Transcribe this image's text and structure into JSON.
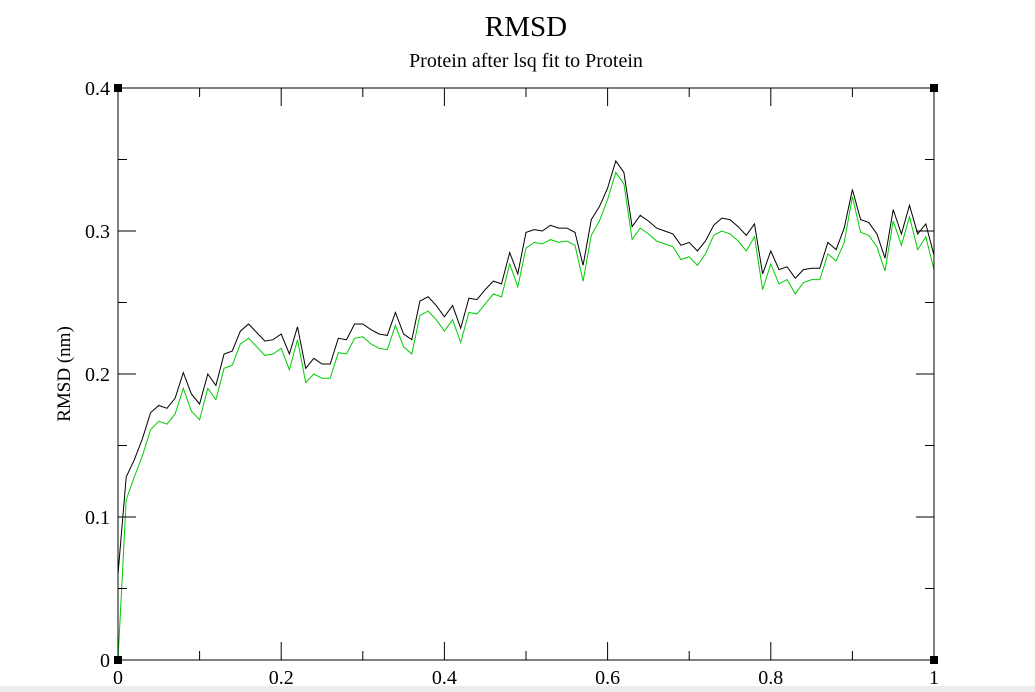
{
  "chart_data": {
    "type": "line",
    "title": "RMSD",
    "subtitle": "Protein after lsq fit to Protein",
    "xlabel": "",
    "ylabel": "RMSD (nm)",
    "xlim": [
      0,
      1
    ],
    "ylim": [
      0,
      0.4
    ],
    "x_ticks": [
      0,
      0.2,
      0.4,
      0.6,
      0.8,
      1
    ],
    "x_tick_labels": [
      "0",
      "0.2",
      "0.4",
      "0.6",
      "0.8",
      "1"
    ],
    "y_ticks": [
      0,
      0.1,
      0.2,
      0.3,
      0.4
    ],
    "y_tick_labels": [
      "0",
      "0.1",
      "0.2",
      "0.3",
      "0.4"
    ],
    "grid": false,
    "legend": "none",
    "series": [
      {
        "color": "#000000",
        "x": [
          0,
          0.01,
          0.02,
          0.03,
          0.04,
          0.05,
          0.06,
          0.07,
          0.08,
          0.09,
          0.1,
          0.11,
          0.12,
          0.13,
          0.14,
          0.15,
          0.16,
          0.17,
          0.18,
          0.19,
          0.2,
          0.21,
          0.22,
          0.23,
          0.24,
          0.25,
          0.26,
          0.27,
          0.28,
          0.29,
          0.3,
          0.31,
          0.32,
          0.33,
          0.34,
          0.35,
          0.36,
          0.37,
          0.38,
          0.39,
          0.4,
          0.41,
          0.42,
          0.43,
          0.44,
          0.45,
          0.46,
          0.47,
          0.48,
          0.49,
          0.5,
          0.51,
          0.52,
          0.53,
          0.54,
          0.55,
          0.56,
          0.57,
          0.58,
          0.59,
          0.6,
          0.61,
          0.62,
          0.63,
          0.64,
          0.65,
          0.66,
          0.67,
          0.68,
          0.69,
          0.7,
          0.71,
          0.72,
          0.73,
          0.74,
          0.75,
          0.76,
          0.77,
          0.78,
          0.79,
          0.8,
          0.81,
          0.82,
          0.83,
          0.84,
          0.85,
          0.86,
          0.87,
          0.88,
          0.89,
          0.9,
          0.91,
          0.92,
          0.93,
          0.94,
          0.95,
          0.96,
          0.97,
          0.98,
          0.99,
          1
        ],
        "y": [
          0.06,
          0.128,
          0.14,
          0.155,
          0.173,
          0.178,
          0.176,
          0.183,
          0.201,
          0.186,
          0.179,
          0.2,
          0.192,
          0.214,
          0.216,
          0.23,
          0.235,
          0.229,
          0.223,
          0.224,
          0.228,
          0.214,
          0.233,
          0.204,
          0.211,
          0.207,
          0.207,
          0.225,
          0.224,
          0.235,
          0.235,
          0.231,
          0.228,
          0.227,
          0.243,
          0.228,
          0.224,
          0.251,
          0.254,
          0.248,
          0.24,
          0.248,
          0.232,
          0.253,
          0.252,
          0.259,
          0.265,
          0.263,
          0.285,
          0.27,
          0.299,
          0.301,
          0.3,
          0.304,
          0.302,
          0.302,
          0.299,
          0.276,
          0.308,
          0.317,
          0.33,
          0.349,
          0.341,
          0.303,
          0.311,
          0.307,
          0.302,
          0.3,
          0.298,
          0.29,
          0.292,
          0.286,
          0.293,
          0.304,
          0.309,
          0.308,
          0.303,
          0.297,
          0.305,
          0.27,
          0.286,
          0.273,
          0.275,
          0.267,
          0.273,
          0.274,
          0.274,
          0.292,
          0.287,
          0.302,
          0.329,
          0.308,
          0.306,
          0.298,
          0.281,
          0.315,
          0.298,
          0.318,
          0.298,
          0.305,
          0.283
        ]
      },
      {
        "color": "#00cc00",
        "x": [
          0,
          0.01,
          0.02,
          0.03,
          0.04,
          0.05,
          0.06,
          0.07,
          0.08,
          0.09,
          0.1,
          0.11,
          0.12,
          0.13,
          0.14,
          0.15,
          0.16,
          0.17,
          0.18,
          0.19,
          0.2,
          0.21,
          0.22,
          0.23,
          0.24,
          0.25,
          0.26,
          0.27,
          0.28,
          0.29,
          0.3,
          0.31,
          0.32,
          0.33,
          0.34,
          0.35,
          0.36,
          0.37,
          0.38,
          0.39,
          0.4,
          0.41,
          0.42,
          0.43,
          0.44,
          0.45,
          0.46,
          0.47,
          0.48,
          0.49,
          0.5,
          0.51,
          0.52,
          0.53,
          0.54,
          0.55,
          0.56,
          0.57,
          0.58,
          0.59,
          0.6,
          0.61,
          0.62,
          0.63,
          0.64,
          0.65,
          0.66,
          0.67,
          0.68,
          0.69,
          0.7,
          0.71,
          0.72,
          0.73,
          0.74,
          0.75,
          0.76,
          0.77,
          0.78,
          0.79,
          0.8,
          0.81,
          0.82,
          0.83,
          0.84,
          0.85,
          0.86,
          0.87,
          0.88,
          0.89,
          0.9,
          0.91,
          0.92,
          0.93,
          0.94,
          0.95,
          0.96,
          0.97,
          0.98,
          0.99,
          1
        ],
        "y": [
          0.0,
          0.112,
          0.128,
          0.143,
          0.161,
          0.167,
          0.165,
          0.172,
          0.19,
          0.174,
          0.168,
          0.19,
          0.182,
          0.204,
          0.206,
          0.221,
          0.225,
          0.219,
          0.213,
          0.214,
          0.218,
          0.203,
          0.224,
          0.194,
          0.2,
          0.197,
          0.197,
          0.215,
          0.214,
          0.225,
          0.226,
          0.221,
          0.218,
          0.217,
          0.234,
          0.219,
          0.214,
          0.241,
          0.244,
          0.238,
          0.23,
          0.238,
          0.222,
          0.243,
          0.242,
          0.249,
          0.256,
          0.254,
          0.277,
          0.261,
          0.288,
          0.292,
          0.291,
          0.294,
          0.292,
          0.293,
          0.29,
          0.265,
          0.297,
          0.307,
          0.322,
          0.341,
          0.333,
          0.294,
          0.302,
          0.298,
          0.293,
          0.291,
          0.289,
          0.28,
          0.282,
          0.276,
          0.284,
          0.297,
          0.3,
          0.298,
          0.293,
          0.286,
          0.296,
          0.259,
          0.277,
          0.263,
          0.266,
          0.256,
          0.264,
          0.266,
          0.266,
          0.284,
          0.279,
          0.292,
          0.324,
          0.299,
          0.297,
          0.289,
          0.272,
          0.307,
          0.29,
          0.31,
          0.287,
          0.296,
          0.273
        ]
      }
    ]
  }
}
